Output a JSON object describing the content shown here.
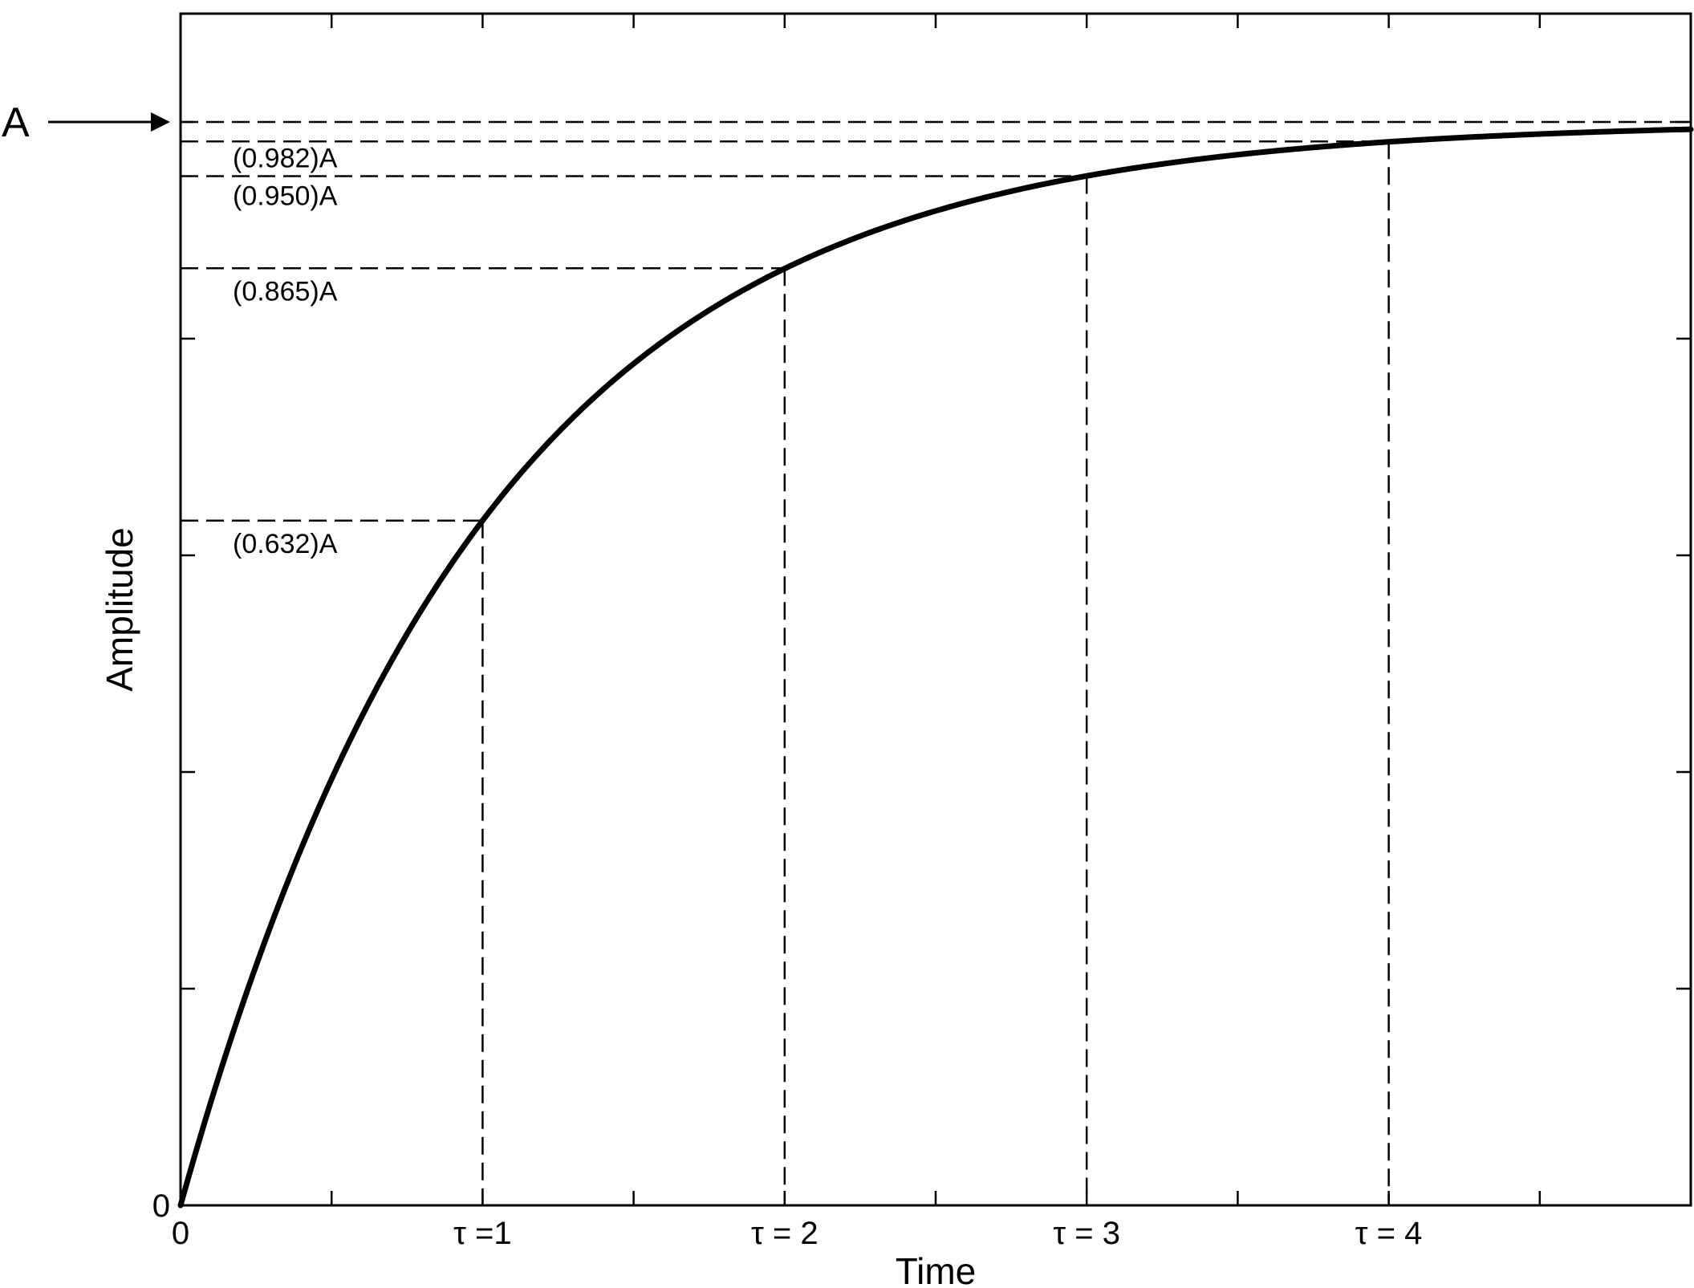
{
  "chart_data": {
    "type": "line",
    "xlabel": "Time",
    "ylabel": "Amplitude",
    "xlim": [
      0,
      5
    ],
    "ylim": [
      0,
      1.1
    ],
    "grid": false,
    "curve": {
      "function": "A*(1-exp(-t/tau))",
      "tau": 1,
      "A": 1
    },
    "x_tick_labels": [
      {
        "x": 0,
        "label": "0"
      },
      {
        "x": 1,
        "label": "τ =1"
      },
      {
        "x": 2,
        "label": "τ = 2"
      },
      {
        "x": 3,
        "label": "τ = 3"
      },
      {
        "x": 4,
        "label": "τ = 4"
      }
    ],
    "y_origin_label": "0",
    "asymptote": {
      "y": 1.0,
      "label": "A"
    },
    "annotations": [
      {
        "x": 1,
        "y": 0.632,
        "label": "(0.632)A"
      },
      {
        "x": 2,
        "y": 0.865,
        "label": "(0.865)A"
      },
      {
        "x": 3,
        "y": 0.95,
        "label": "(0.950)A"
      },
      {
        "x": 4,
        "y": 0.982,
        "label": "(0.982)A"
      }
    ]
  }
}
